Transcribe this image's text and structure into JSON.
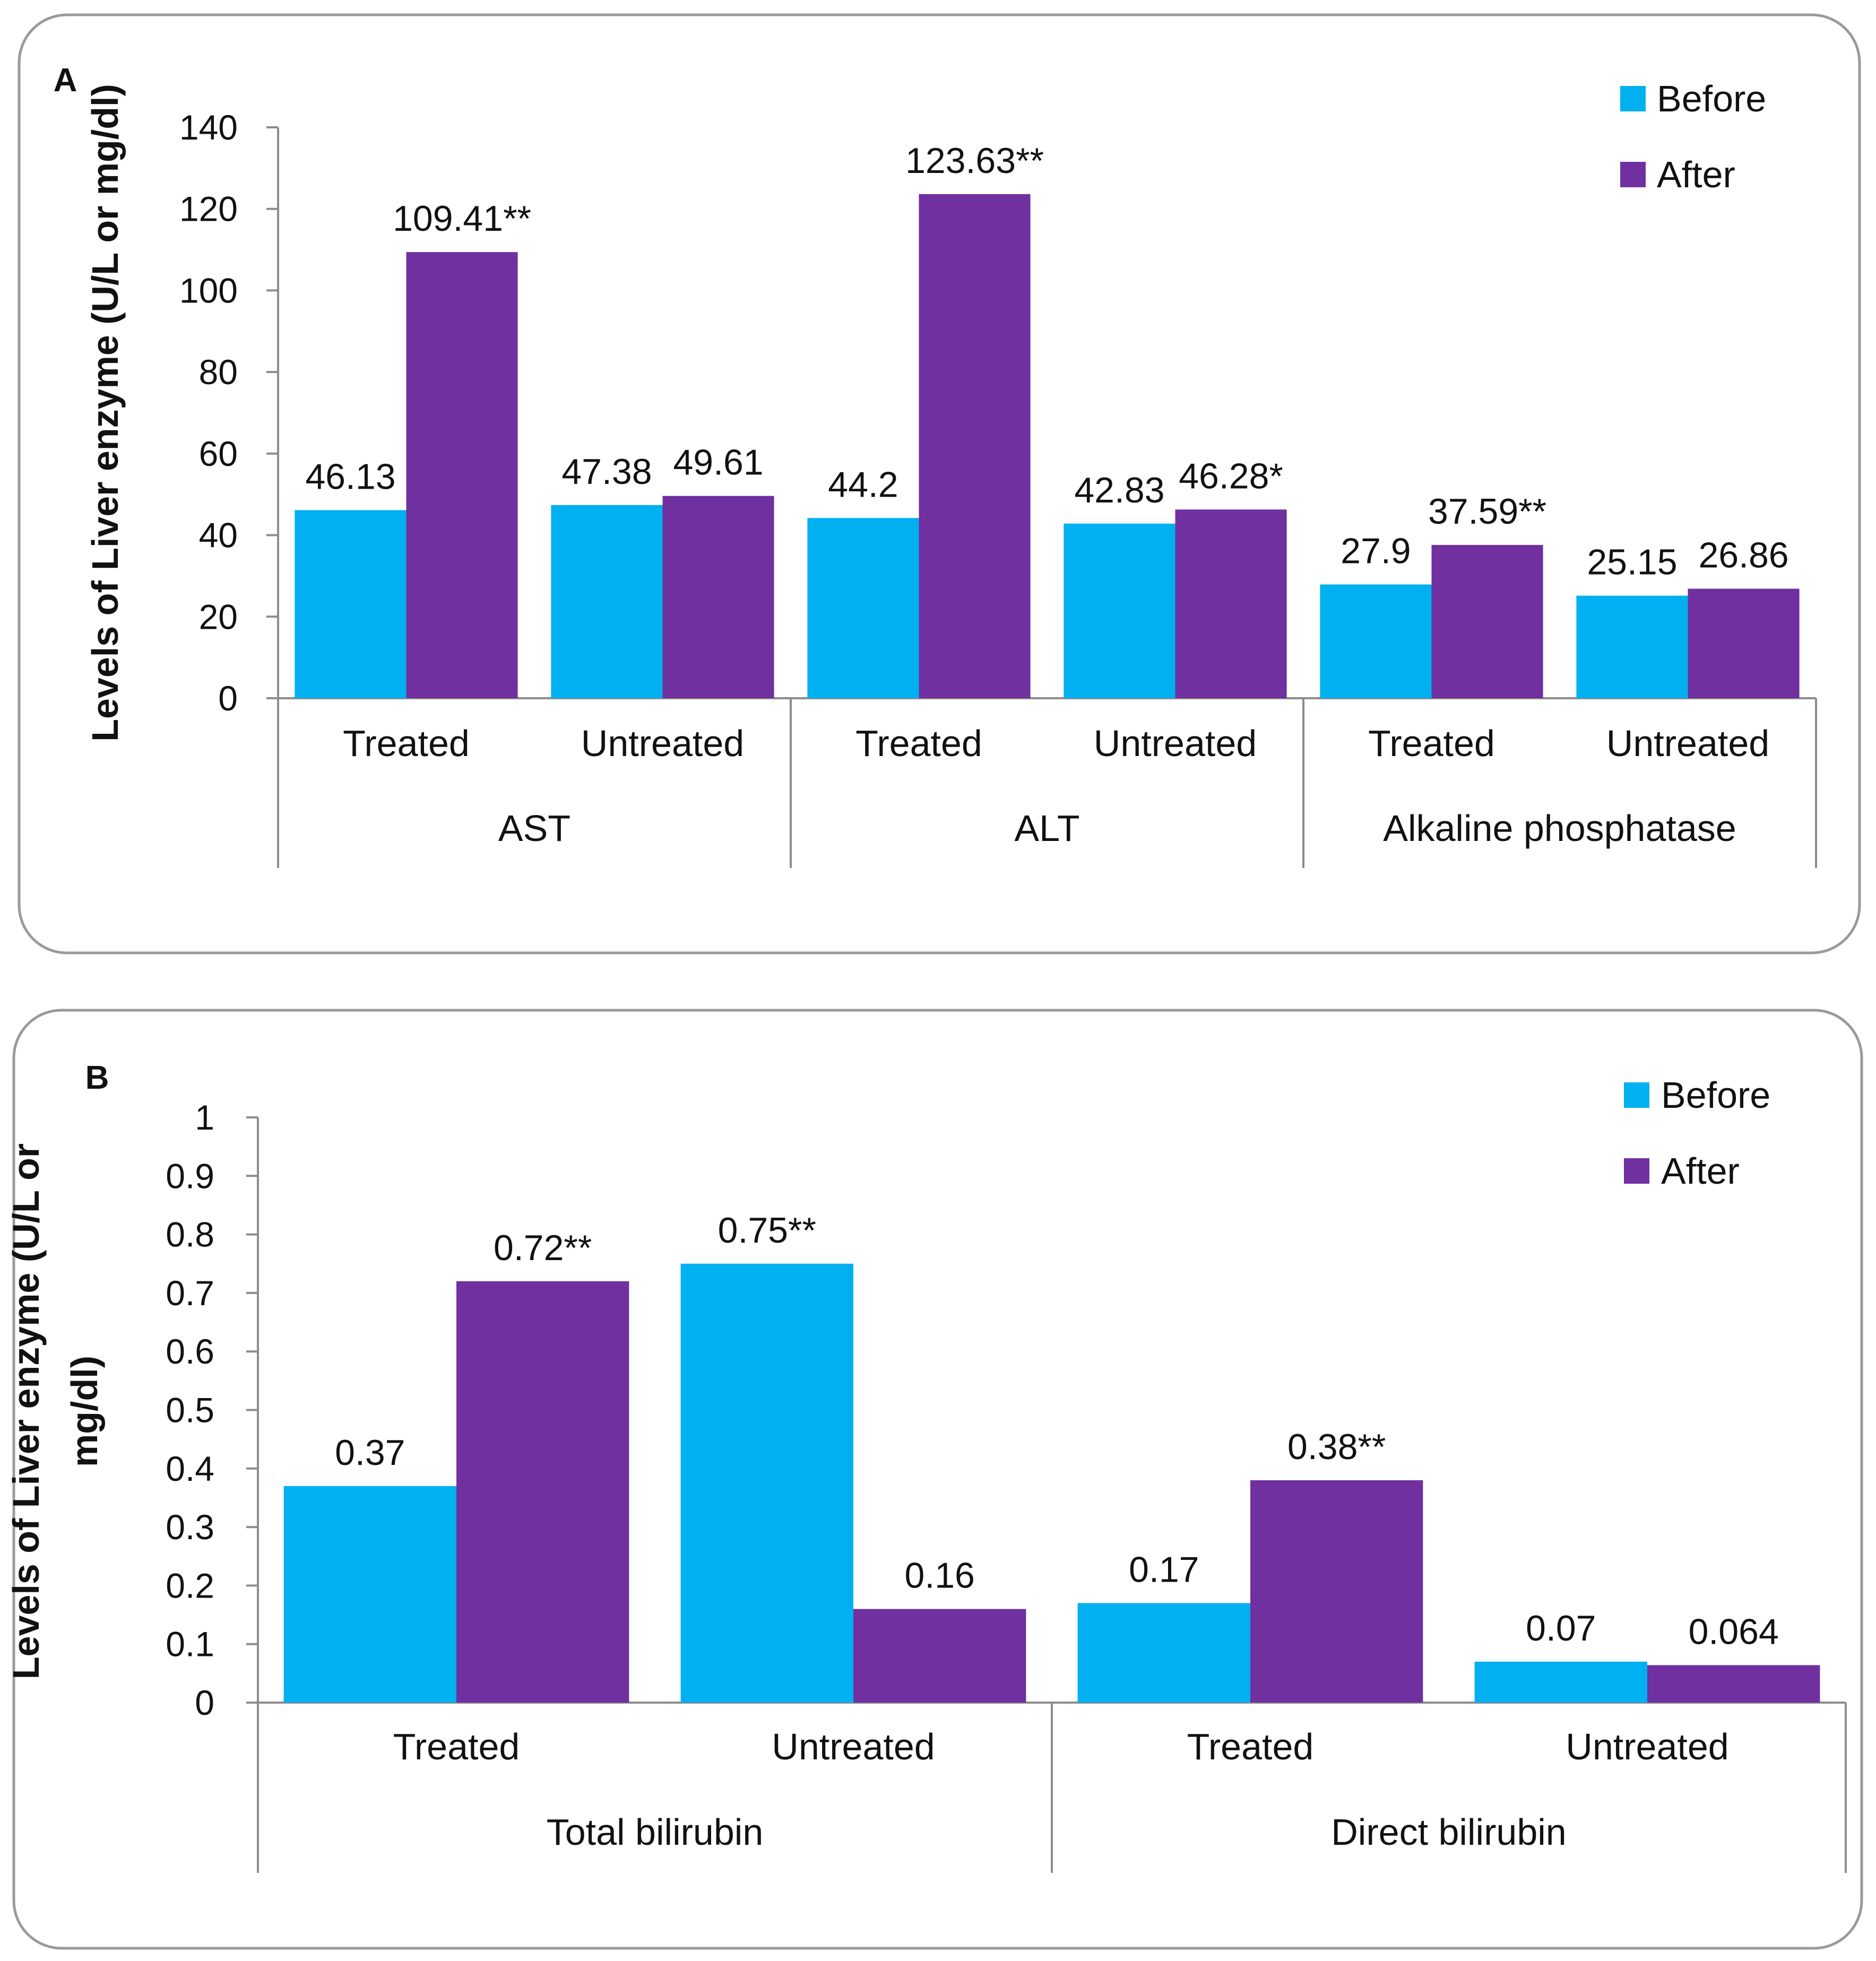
{
  "colors": {
    "before": "#00B0F0",
    "after": "#7030A0"
  },
  "chart_data": [
    {
      "type": "bar",
      "panel_label": "A",
      "ylabel": [
        "Levels of Liver enzyme (U/L or mg/dl)"
      ],
      "ylim": [
        0,
        140
      ],
      "yticks": [
        "0",
        "20",
        "40",
        "60",
        "80",
        "100",
        "120",
        "140"
      ],
      "legend": [
        "Before",
        "After"
      ],
      "legend_position": "top-right",
      "groups": [
        "AST",
        "ALT",
        "Alkaline phosphatase"
      ],
      "categories": [
        "Treated",
        "Untreated",
        "Treated",
        "Untreated",
        "Treated",
        "Untreated"
      ],
      "series": [
        {
          "name": "Before",
          "values": [
            46.13,
            47.38,
            44.2,
            42.83,
            27.9,
            25.15
          ],
          "labels": [
            "46.13",
            "47.38",
            "44.2",
            "42.83",
            "27.9",
            "25.15"
          ]
        },
        {
          "name": "After",
          "values": [
            109.41,
            49.61,
            123.63,
            46.28,
            37.59,
            26.86
          ],
          "labels": [
            "109.41**",
            "49.61",
            "123.63**",
            "46.28*",
            "37.59**",
            "26.86"
          ]
        }
      ]
    },
    {
      "type": "bar",
      "panel_label": "B",
      "ylabel": [
        "Levels of Liver enzyme  (U/L or",
        "mg/dl)"
      ],
      "ylim": [
        0,
        1
      ],
      "yticks": [
        "0",
        "0.1",
        "0.2",
        "0.3",
        "0.4",
        "0.5",
        "0.6",
        "0.7",
        "0.8",
        "0.9",
        "1"
      ],
      "legend": [
        "Before",
        "After"
      ],
      "legend_position": "top-right",
      "groups": [
        "Total bilirubin",
        "Direct bilirubin"
      ],
      "categories": [
        "Treated",
        "Untreated",
        "Treated",
        "Untreated"
      ],
      "series": [
        {
          "name": "Before",
          "values": [
            0.37,
            0.75,
            0.17,
            0.07
          ],
          "labels": [
            "0.37",
            "0.75**",
            "0.17",
            "0.07"
          ]
        },
        {
          "name": "After",
          "values": [
            0.72,
            0.16,
            0.38,
            0.064
          ],
          "labels": [
            "0.72**",
            "0.16",
            "0.38**",
            "0.064"
          ]
        }
      ]
    }
  ]
}
